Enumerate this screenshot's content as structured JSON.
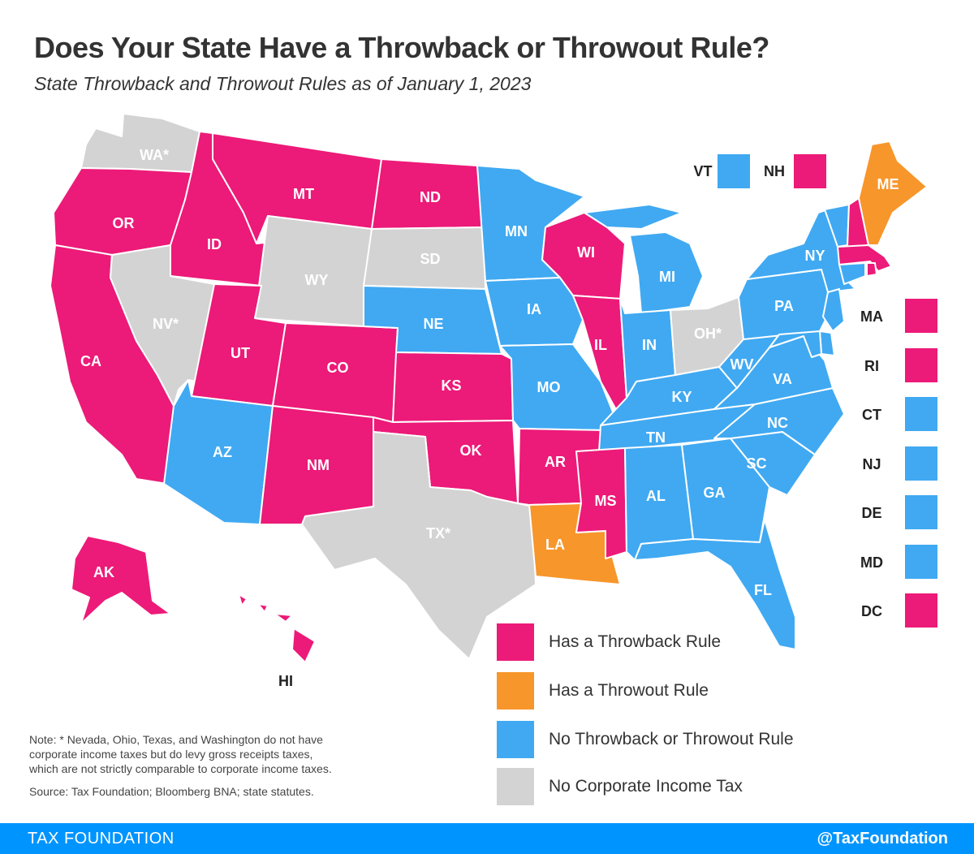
{
  "title": "Does Your State Have a Throwback or Throwout Rule?",
  "subtitle": "State Throwback and Throwout Rules as of January 1, 2023",
  "colors": {
    "throwback": "#ec1a78",
    "throwout": "#f7962a",
    "none": "#40a9f2",
    "no_tax": "#d3d3d3"
  },
  "states": {
    "WA": {
      "label": "WA*",
      "category": "no_tax"
    },
    "OR": {
      "label": "OR",
      "category": "throwback"
    },
    "CA": {
      "label": "CA",
      "category": "throwback"
    },
    "ID": {
      "label": "ID",
      "category": "throwback"
    },
    "NV": {
      "label": "NV*",
      "category": "no_tax"
    },
    "MT": {
      "label": "MT",
      "category": "throwback"
    },
    "WY": {
      "label": "WY",
      "category": "no_tax"
    },
    "UT": {
      "label": "UT",
      "category": "throwback"
    },
    "AZ": {
      "label": "AZ",
      "category": "none"
    },
    "CO": {
      "label": "CO",
      "category": "throwback"
    },
    "NM": {
      "label": "NM",
      "category": "throwback"
    },
    "ND": {
      "label": "ND",
      "category": "throwback"
    },
    "SD": {
      "label": "SD",
      "category": "no_tax"
    },
    "NE": {
      "label": "NE",
      "category": "none"
    },
    "KS": {
      "label": "KS",
      "category": "throwback"
    },
    "OK": {
      "label": "OK",
      "category": "throwback"
    },
    "TX": {
      "label": "TX*",
      "category": "no_tax"
    },
    "MN": {
      "label": "MN",
      "category": "none"
    },
    "IA": {
      "label": "IA",
      "category": "none"
    },
    "MO": {
      "label": "MO",
      "category": "none"
    },
    "AR": {
      "label": "AR",
      "category": "throwback"
    },
    "LA": {
      "label": "LA",
      "category": "throwout"
    },
    "WI": {
      "label": "WI",
      "category": "throwback"
    },
    "IL": {
      "label": "IL",
      "category": "throwback"
    },
    "MI": {
      "label": "MI",
      "category": "none"
    },
    "IN": {
      "label": "IN",
      "category": "none"
    },
    "OH": {
      "label": "OH*",
      "category": "no_tax"
    },
    "KY": {
      "label": "KY",
      "category": "none"
    },
    "TN": {
      "label": "TN",
      "category": "none"
    },
    "MS": {
      "label": "MS",
      "category": "throwback"
    },
    "AL": {
      "label": "AL",
      "category": "none"
    },
    "GA": {
      "label": "GA",
      "category": "none"
    },
    "FL": {
      "label": "FL",
      "category": "none"
    },
    "SC": {
      "label": "SC",
      "category": "none"
    },
    "NC": {
      "label": "NC",
      "category": "none"
    },
    "VA": {
      "label": "VA",
      "category": "none"
    },
    "WV": {
      "label": "WV",
      "category": "none"
    },
    "PA": {
      "label": "PA",
      "category": "none"
    },
    "NY": {
      "label": "NY",
      "category": "none"
    },
    "VT": {
      "label": "VT",
      "category": "none"
    },
    "NH": {
      "label": "NH",
      "category": "throwback"
    },
    "ME": {
      "label": "ME",
      "category": "throwout"
    },
    "MA": {
      "label": "MA",
      "category": "throwback"
    },
    "RI": {
      "label": "RI",
      "category": "throwback"
    },
    "CT": {
      "label": "CT",
      "category": "none"
    },
    "NJ": {
      "label": "NJ",
      "category": "none"
    },
    "DE": {
      "label": "DE",
      "category": "none"
    },
    "MD": {
      "label": "MD",
      "category": "none"
    },
    "DC": {
      "label": "DC",
      "category": "throwback"
    },
    "AK": {
      "label": "AK",
      "category": "throwback"
    },
    "HI": {
      "label": "HI",
      "category": "throwback"
    }
  },
  "top_callouts": [
    {
      "label": "VT",
      "category": "none"
    },
    {
      "label": "NH",
      "category": "throwback"
    }
  ],
  "side_callouts": [
    {
      "label": "MA",
      "category": "throwback"
    },
    {
      "label": "RI",
      "category": "throwback"
    },
    {
      "label": "CT",
      "category": "none"
    },
    {
      "label": "NJ",
      "category": "none"
    },
    {
      "label": "DE",
      "category": "none"
    },
    {
      "label": "MD",
      "category": "none"
    },
    {
      "label": "DC",
      "category": "throwback"
    }
  ],
  "legend": [
    {
      "label": "Has a Throwback Rule",
      "category": "throwback"
    },
    {
      "label": "Has a Throwout Rule",
      "category": "throwout"
    },
    {
      "label": "No Throwback or Throwout Rule",
      "category": "none"
    },
    {
      "label": "No Corporate Income Tax",
      "category": "no_tax"
    }
  ],
  "note_lines": [
    "Note: * Nevada, Ohio, Texas, and Washington do not have",
    "corporate income taxes but do levy gross receipts taxes,",
    "which are not strictly comparable to corporate income taxes."
  ],
  "source": "Source: Tax Foundation; Bloomberg BNA; state statutes.",
  "footer": {
    "left": "TAX FOUNDATION",
    "right": "@TaxFoundation"
  }
}
